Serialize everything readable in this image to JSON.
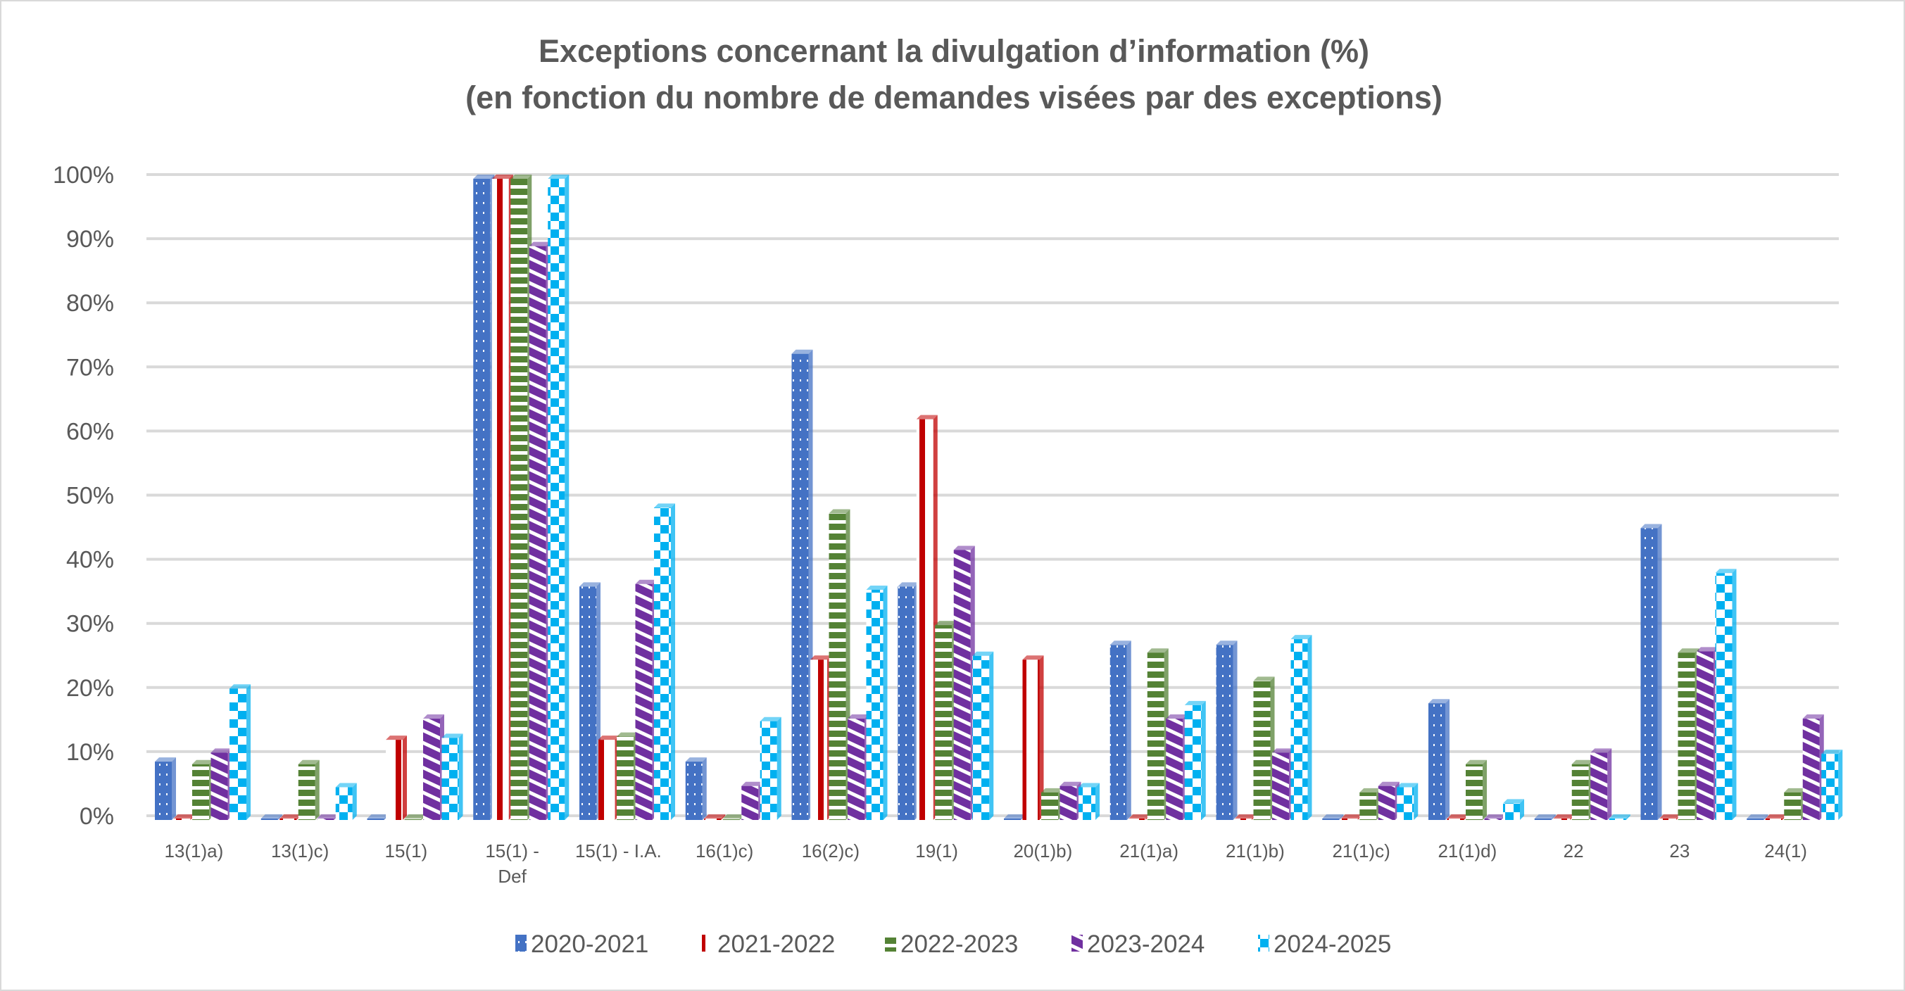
{
  "chart_data": {
    "type": "bar",
    "title": "Exceptions concernant la divulgation d’information (%)",
    "subtitle": "(en fonction du nombre de demandes visées par des exceptions)",
    "xlabel": "",
    "ylabel": "",
    "ylim": [
      0,
      100
    ],
    "yticks": [
      "0%",
      "10%",
      "20%",
      "30%",
      "40%",
      "50%",
      "60%",
      "70%",
      "80%",
      "90%",
      "100%"
    ],
    "grid": true,
    "legend_position": "bottom",
    "categories": [
      "13(1)a)",
      "13(1)c)",
      "15(1)",
      "15(1) - Def",
      "15(1) - I.A.",
      "16(1)c)",
      "16(2)c)",
      "19(1)",
      "20(1)b)",
      "21(1)a)",
      "21(1)b)",
      "21(1)c)",
      "21(1)d)",
      "22",
      "23",
      "24(1)"
    ],
    "series": [
      {
        "name": "2020-2021",
        "color": "#4472c4",
        "values": [
          9.1,
          0,
          0,
          100,
          36.4,
          9.1,
          72.7,
          36.4,
          0,
          27.3,
          27.3,
          0,
          18.2,
          0,
          45.5,
          0
        ]
      },
      {
        "name": "2021-2022",
        "color": "#c00000",
        "values": [
          0,
          0,
          12.5,
          100,
          12.5,
          0,
          25,
          62.5,
          25,
          0,
          0,
          0,
          0,
          0,
          0,
          0
        ]
      },
      {
        "name": "2022-2023",
        "color": "#548235",
        "values": [
          8.7,
          8.7,
          0,
          100,
          13,
          0,
          47.8,
          30.4,
          4.3,
          26.1,
          21.7,
          4.3,
          8.7,
          8.7,
          26.1,
          4.3
        ]
      },
      {
        "name": "2023-2024",
        "color": "#7030a0",
        "values": [
          10.5,
          0,
          15.8,
          89.5,
          36.8,
          5.3,
          15.8,
          42.1,
          5.3,
          15.8,
          10.5,
          5.3,
          0,
          10.5,
          26.3,
          15.8
        ]
      },
      {
        "name": "2024-2025",
        "color": "#00b0f0",
        "values": [
          20.5,
          5.1,
          12.8,
          100,
          48.7,
          15.4,
          35.9,
          25.6,
          5.1,
          17.9,
          28.2,
          5.1,
          2.6,
          0,
          38.5,
          10.3
        ]
      }
    ]
  }
}
